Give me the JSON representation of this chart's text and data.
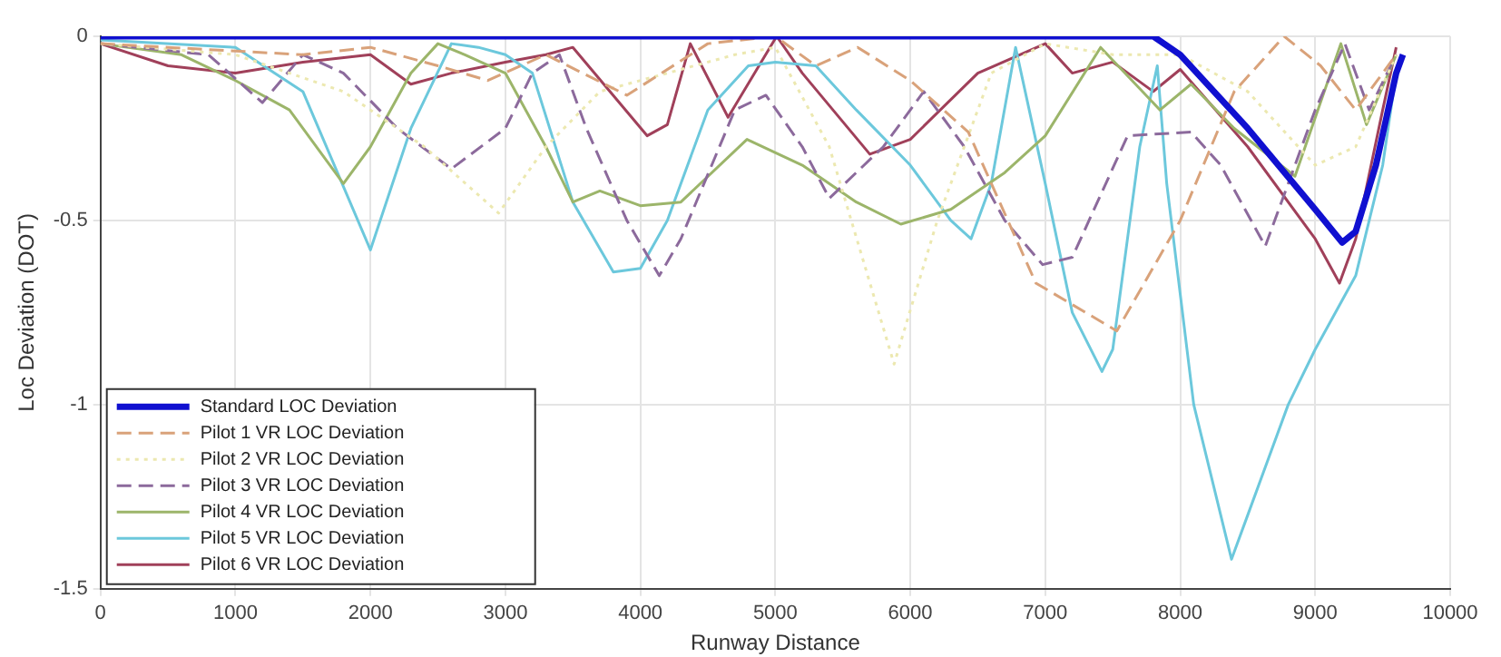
{
  "chart_data": {
    "type": "line",
    "xlabel": "Runway Distance",
    "ylabel": "Loc Deviation (DOT)",
    "xlim": [
      0,
      10000
    ],
    "xticks": [
      0,
      1000,
      2000,
      3000,
      4000,
      5000,
      6000,
      7000,
      8000,
      9000,
      10000
    ],
    "ylim": [
      -1.5,
      0
    ],
    "yticks": [
      -1.5,
      -1,
      -0.5,
      0
    ],
    "grid": true,
    "legend": "bottom left",
    "series": [
      {
        "name": "Standard LOC Deviation",
        "color": "#1010d0",
        "line_style": "solid",
        "x": [
          0,
          2000,
          4000,
          6000,
          7800,
          8000,
          8500,
          9000,
          9200,
          9300,
          9450,
          9600,
          9650
        ],
        "values": [
          0,
          0,
          0,
          0,
          0,
          -0.05,
          -0.25,
          -0.47,
          -0.56,
          -0.53,
          -0.35,
          -0.1,
          -0.05
        ]
      },
      {
        "name": "Pilot 1 VR LOC Deviation",
        "color": "#d9a27a",
        "line_style": "dashed",
        "x": [
          0,
          500,
          1000,
          1500,
          2000,
          2500,
          2870,
          3300,
          3900,
          4500,
          5000,
          5300,
          5610,
          6000,
          6430,
          6930,
          7530,
          8000,
          8400,
          8770,
          9040,
          9300,
          9600
        ],
        "values": [
          -0.02,
          -0.03,
          -0.04,
          -0.05,
          -0.03,
          -0.08,
          -0.12,
          -0.05,
          -0.16,
          -0.02,
          0,
          -0.08,
          -0.03,
          -0.12,
          -0.26,
          -0.67,
          -0.8,
          -0.5,
          -0.15,
          0,
          -0.08,
          -0.2,
          -0.05
        ]
      },
      {
        "name": "Pilot 2 VR LOC Deviation",
        "color": "#ece8b0",
        "line_style": "dotted",
        "x": [
          0,
          1000,
          1800,
          2400,
          2950,
          3300,
          3700,
          4200,
          4700,
          5000,
          5400,
          5880,
          6200,
          6600,
          7000,
          7500,
          8000,
          8500,
          9000,
          9300,
          9600
        ],
        "values": [
          -0.02,
          -0.05,
          -0.15,
          -0.3,
          -0.48,
          -0.3,
          -0.15,
          -0.1,
          -0.05,
          -0.03,
          -0.3,
          -0.89,
          -0.5,
          -0.1,
          -0.02,
          -0.05,
          -0.05,
          -0.15,
          -0.35,
          -0.3,
          -0.05
        ]
      },
      {
        "name": "Pilot 3 VR LOC Deviation",
        "color": "#8c6a9c",
        "line_style": "dashed",
        "x": [
          0,
          800,
          1200,
          1500,
          1800,
          2200,
          2600,
          3000,
          3200,
          3400,
          3600,
          3900,
          4140,
          4300,
          4700,
          4930,
          5200,
          5400,
          5800,
          6100,
          6400,
          6700,
          6980,
          7200,
          7610,
          8080,
          8300,
          8630,
          8800,
          9000,
          9220,
          9400,
          9600
        ],
        "values": [
          -0.02,
          -0.05,
          -0.18,
          -0.05,
          -0.1,
          -0.25,
          -0.36,
          -0.25,
          -0.1,
          -0.05,
          -0.25,
          -0.5,
          -0.65,
          -0.55,
          -0.2,
          -0.16,
          -0.3,
          -0.44,
          -0.3,
          -0.15,
          -0.3,
          -0.5,
          -0.62,
          -0.6,
          -0.27,
          -0.26,
          -0.35,
          -0.57,
          -0.4,
          -0.2,
          -0.02,
          -0.2,
          -0.05
        ]
      },
      {
        "name": "Pilot 4 VR LOC Deviation",
        "color": "#9cb56a",
        "line_style": "solid",
        "x": [
          0,
          600,
          1000,
          1400,
          1800,
          2000,
          2300,
          2500,
          2700,
          3000,
          3300,
          3500,
          3700,
          4000,
          4300,
          4790,
          5200,
          5600,
          5930,
          6300,
          6700,
          7000,
          7410,
          7850,
          8080,
          8400,
          8850,
          9190,
          9380,
          9600
        ],
        "values": [
          -0.02,
          -0.05,
          -0.12,
          -0.2,
          -0.4,
          -0.3,
          -0.1,
          -0.02,
          -0.05,
          -0.1,
          -0.3,
          -0.45,
          -0.42,
          -0.46,
          -0.45,
          -0.28,
          -0.35,
          -0.45,
          -0.51,
          -0.47,
          -0.37,
          -0.27,
          -0.03,
          -0.2,
          -0.13,
          -0.25,
          -0.38,
          -0.02,
          -0.24,
          -0.05
        ]
      },
      {
        "name": "Pilot 5 VR LOC Deviation",
        "color": "#6cc8dc",
        "line_style": "solid",
        "x": [
          0,
          1000,
          1500,
          2000,
          2300,
          2600,
          2800,
          3000,
          3200,
          3500,
          3800,
          4000,
          4200,
          4500,
          4800,
          5000,
          5300,
          5600,
          6000,
          6300,
          6450,
          6600,
          6780,
          7000,
          7200,
          7420,
          7500,
          7700,
          7830,
          7900,
          8100,
          8380,
          8500,
          8800,
          9000,
          9300,
          9500,
          9600
        ],
        "values": [
          -0.01,
          -0.03,
          -0.15,
          -0.58,
          -0.25,
          -0.02,
          -0.03,
          -0.05,
          -0.1,
          -0.45,
          -0.64,
          -0.63,
          -0.5,
          -0.2,
          -0.08,
          -0.07,
          -0.08,
          -0.2,
          -0.35,
          -0.5,
          -0.55,
          -0.4,
          -0.03,
          -0.4,
          -0.75,
          -0.91,
          -0.85,
          -0.3,
          -0.08,
          -0.4,
          -1.0,
          -1.42,
          -1.3,
          -1.0,
          -0.85,
          -0.65,
          -0.35,
          -0.1
        ]
      },
      {
        "name": "Pilot 6 VR LOC Deviation",
        "color": "#a0405a",
        "line_style": "solid",
        "x": [
          0,
          500,
          1000,
          1500,
          2000,
          2300,
          2600,
          3000,
          3300,
          3500,
          4050,
          4200,
          4370,
          4650,
          5010,
          5200,
          5700,
          6000,
          6500,
          7000,
          7200,
          7500,
          7800,
          8000,
          8500,
          9000,
          9180,
          9300,
          9500,
          9600
        ],
        "values": [
          -0.02,
          -0.08,
          -0.1,
          -0.07,
          -0.05,
          -0.13,
          -0.1,
          -0.07,
          -0.05,
          -0.03,
          -0.27,
          -0.24,
          -0.02,
          -0.22,
          0,
          -0.1,
          -0.32,
          -0.28,
          -0.1,
          -0.02,
          -0.1,
          -0.07,
          -0.15,
          -0.09,
          -0.3,
          -0.55,
          -0.67,
          -0.55,
          -0.2,
          -0.03
        ]
      }
    ]
  }
}
